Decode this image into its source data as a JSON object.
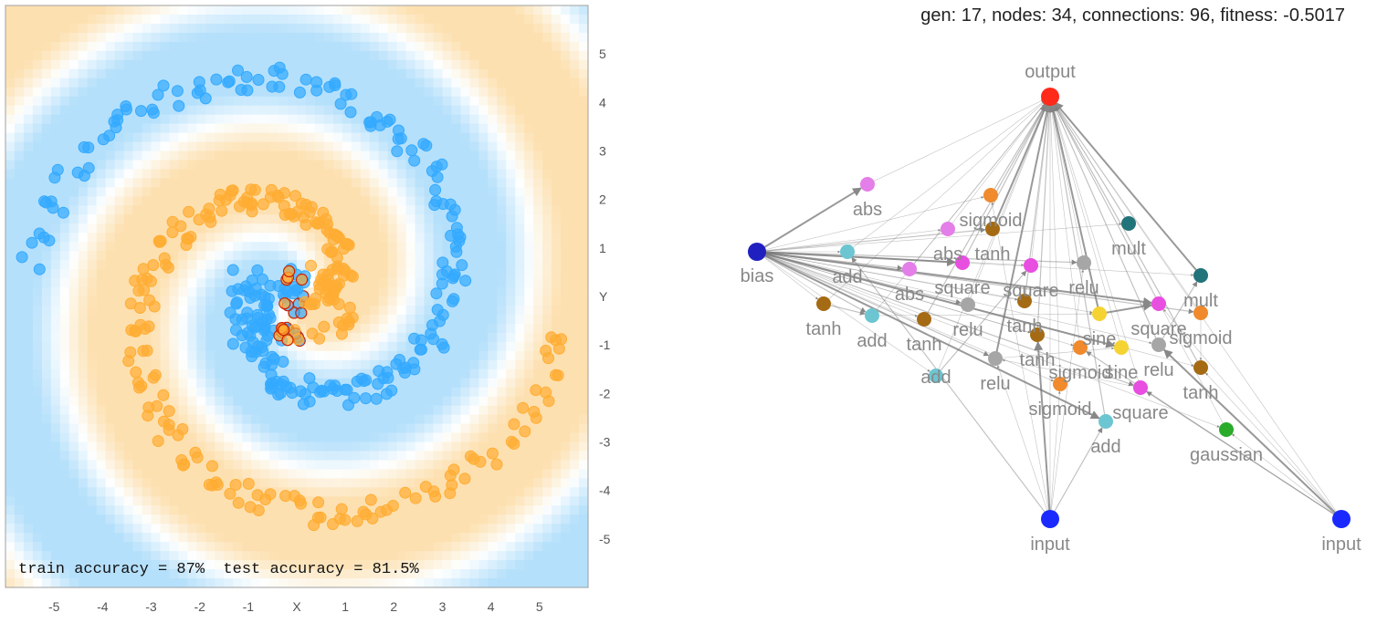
{
  "chart_data": [
    {
      "type": "scatter",
      "title": "",
      "xlabel": "X",
      "ylabel": "Y",
      "xlim": [
        -6,
        6
      ],
      "ylim": [
        -6,
        6
      ],
      "x_ticks": [
        "-5",
        "-4",
        "-3",
        "-2",
        "-1",
        "X",
        "1",
        "2",
        "3",
        "4",
        "5"
      ],
      "y_ticks": [
        "5",
        "4",
        "3",
        "2",
        "1",
        "Y",
        "-1",
        "-2",
        "-3",
        "-4",
        "-5"
      ],
      "grid": false,
      "colors": {
        "orange": "#ffad33",
        "blue": "#33aaff",
        "bg_orange": "#fde0b0",
        "bg_blue": "#b5e0fb",
        "error_stroke": "#cc2200",
        "frame": "#a0a0a0"
      },
      "accuracy_text": "train accuracy = 87%  test accuracy = 81.5%",
      "series": [
        {
          "name": "class orange",
          "description": "spiral arm A with inner core cluster"
        },
        {
          "name": "class blue",
          "description": "spiral arm B with inner core cluster"
        }
      ]
    },
    {
      "type": "network",
      "stats_text": "gen: 17, nodes: 34, connections: 96, fitness: -0.5017",
      "node_colors": {
        "output": "#ff2a1a",
        "input": "#1a2aff",
        "bias": "#2020c0",
        "abs": "#e47ee8",
        "sigmoid": "#f08a2c",
        "tanh": "#a56b14",
        "mult": "#217479",
        "add": "#6cc6d2",
        "relu": "#a6a6a6",
        "sine": "#f5d333",
        "square": "#e84ee0",
        "gaussian": "#2aab2a"
      },
      "nodes": [
        {
          "id": "out",
          "label": "output",
          "type": "output"
        },
        {
          "id": "bias",
          "label": "bias",
          "type": "bias"
        },
        {
          "id": "in1",
          "label": "input",
          "type": "input"
        },
        {
          "id": "in2",
          "label": "input",
          "type": "input"
        },
        {
          "id": "n1",
          "label": "abs",
          "type": "abs"
        },
        {
          "id": "n2",
          "label": "sigmoid",
          "type": "sigmoid"
        },
        {
          "id": "n3",
          "label": "abs",
          "type": "abs"
        },
        {
          "id": "n4",
          "label": "tanh",
          "type": "tanh"
        },
        {
          "id": "n5",
          "label": "mult",
          "type": "mult"
        },
        {
          "id": "n6",
          "label": "add",
          "type": "add"
        },
        {
          "id": "n7",
          "label": "abs",
          "type": "abs"
        },
        {
          "id": "n8",
          "label": "square",
          "type": "square"
        },
        {
          "id": "n9",
          "label": "square",
          "type": "square"
        },
        {
          "id": "n10",
          "label": "relu",
          "type": "relu"
        },
        {
          "id": "n11",
          "label": "mult",
          "type": "mult"
        },
        {
          "id": "n12",
          "label": "tanh",
          "type": "tanh"
        },
        {
          "id": "n13",
          "label": "relu",
          "type": "relu"
        },
        {
          "id": "n14",
          "label": "tanh",
          "type": "tanh"
        },
        {
          "id": "n15",
          "label": "square",
          "type": "square"
        },
        {
          "id": "n16",
          "label": "add",
          "type": "add"
        },
        {
          "id": "n17",
          "label": "tanh",
          "type": "tanh"
        },
        {
          "id": "n18",
          "label": "sine",
          "type": "sine"
        },
        {
          "id": "n19",
          "label": "sigmoid",
          "type": "sigmoid"
        },
        {
          "id": "n20",
          "label": "tanh",
          "type": "tanh"
        },
        {
          "id": "n21",
          "label": "sigmoid",
          "type": "sigmoid"
        },
        {
          "id": "n22",
          "label": "sine",
          "type": "sine"
        },
        {
          "id": "n23",
          "label": "relu",
          "type": "relu"
        },
        {
          "id": "n24",
          "label": "add",
          "type": "add"
        },
        {
          "id": "n25",
          "label": "relu",
          "type": "relu"
        },
        {
          "id": "n26",
          "label": "tanh",
          "type": "tanh"
        },
        {
          "id": "n27",
          "label": "sigmoid",
          "type": "sigmoid"
        },
        {
          "id": "n28",
          "label": "square",
          "type": "square"
        },
        {
          "id": "n29",
          "label": "add",
          "type": "add"
        },
        {
          "id": "n30",
          "label": "gaussian",
          "type": "gaussian"
        }
      ]
    }
  ]
}
